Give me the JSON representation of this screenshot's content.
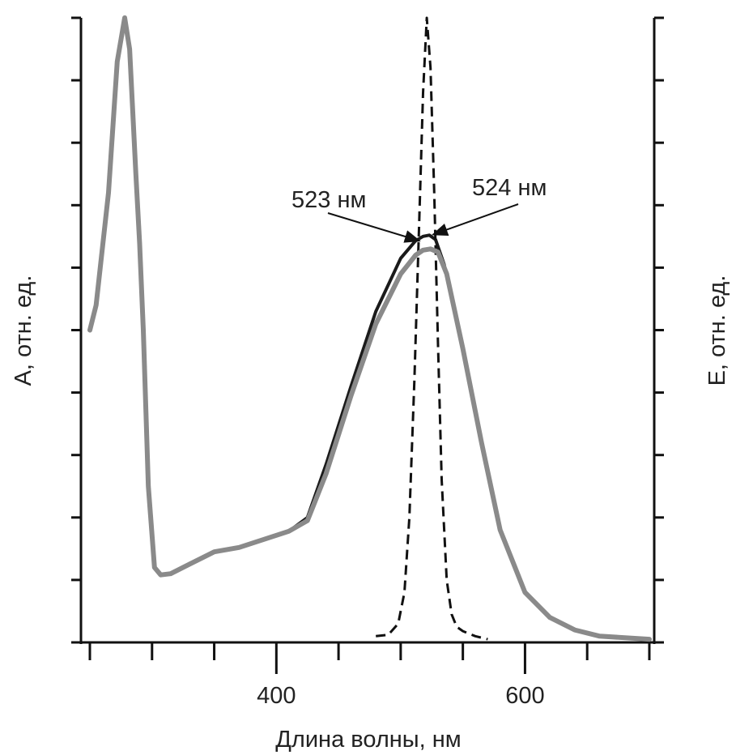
{
  "chart_data": {
    "type": "line",
    "title": "",
    "xlabel": "Длина волны, нм",
    "ylabel_left": "А, отн. ед.",
    "ylabel_right": "Е, отн. ед.",
    "xlim": [
      243,
      705
    ],
    "ylim": [
      0,
      1
    ],
    "x_ticks": [
      250,
      300,
      350,
      400,
      450,
      500,
      550,
      600,
      650,
      700
    ],
    "x_tick_labels": [
      {
        "value": 400,
        "label": "400"
      },
      {
        "value": 600,
        "label": "600"
      }
    ],
    "y_ticks": [
      0,
      0.1,
      0.2,
      0.3,
      0.4,
      0.5,
      0.6,
      0.7,
      0.8,
      0.9,
      1.0
    ],
    "grid": false,
    "series": [
      {
        "name": "absorbance-black",
        "color": "#1a1a1a",
        "style": "solid",
        "x": [
          250,
          255,
          265,
          272,
          278,
          282,
          287,
          290,
          293,
          297,
          302,
          307,
          315,
          330,
          350,
          370,
          390,
          410,
          425,
          440,
          460,
          480,
          500,
          512,
          518,
          523,
          528,
          535,
          550,
          565,
          580,
          600,
          620,
          640,
          660,
          700
        ],
        "y": [
          0.5,
          0.54,
          0.72,
          0.93,
          1.0,
          0.95,
          0.75,
          0.64,
          0.5,
          0.25,
          0.12,
          0.108,
          0.11,
          0.125,
          0.145,
          0.152,
          0.165,
          0.178,
          0.2,
          0.285,
          0.41,
          0.53,
          0.615,
          0.643,
          0.65,
          0.652,
          0.645,
          0.605,
          0.47,
          0.32,
          0.18,
          0.08,
          0.04,
          0.02,
          0.01,
          0.005
        ]
      },
      {
        "name": "absorbance-gray",
        "color": "#8a8a8a",
        "style": "solid",
        "x": [
          250,
          255,
          265,
          272,
          278,
          282,
          287,
          290,
          293,
          297,
          302,
          307,
          315,
          330,
          350,
          370,
          390,
          410,
          425,
          440,
          460,
          480,
          500,
          512,
          518,
          524,
          530,
          537,
          550,
          565,
          580,
          600,
          620,
          640,
          660,
          700
        ],
        "y": [
          0.5,
          0.54,
          0.72,
          0.93,
          1.0,
          0.95,
          0.75,
          0.64,
          0.5,
          0.25,
          0.12,
          0.108,
          0.11,
          0.125,
          0.145,
          0.152,
          0.165,
          0.178,
          0.195,
          0.27,
          0.395,
          0.51,
          0.59,
          0.62,
          0.628,
          0.63,
          0.625,
          0.59,
          0.47,
          0.32,
          0.18,
          0.08,
          0.04,
          0.02,
          0.01,
          0.005
        ]
      },
      {
        "name": "emission-dashed",
        "color": "#111111",
        "style": "dashed",
        "x": [
          480,
          490,
          498,
          503,
          507,
          511,
          515,
          518,
          521,
          524,
          527,
          530,
          533,
          537,
          541,
          545,
          550,
          560,
          570
        ],
        "y": [
          0.01,
          0.012,
          0.03,
          0.08,
          0.2,
          0.42,
          0.68,
          0.88,
          1.0,
          0.92,
          0.72,
          0.48,
          0.26,
          0.1,
          0.045,
          0.025,
          0.018,
          0.01,
          0.005
        ]
      }
    ],
    "annotations": [
      {
        "label": "523 нм",
        "x": 515,
        "y": 0.643
      },
      {
        "label": "524 нм",
        "x": 526,
        "y": 0.653
      }
    ]
  }
}
